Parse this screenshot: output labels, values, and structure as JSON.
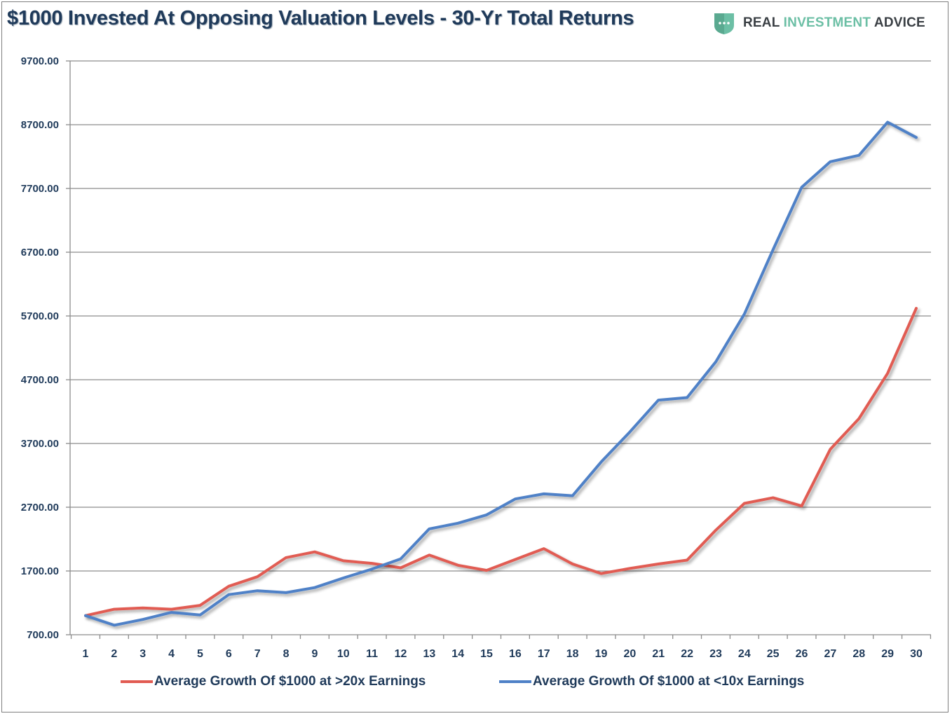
{
  "header": {
    "title": "$1000 Invested At Opposing Valuation Levels - 30-Yr Total Returns",
    "brand_part1": "REAL ",
    "brand_part2": "INVESTMENT",
    "brand_part3": " ADVICE",
    "logo_icon": "shield-chat-icon"
  },
  "colors": {
    "red_series": "#e15b52",
    "blue_series": "#4f81c7",
    "grid": "#8c8c8c",
    "text": "#1f3a5a",
    "brand_accent": "#6cbfa5"
  },
  "chart_data": {
    "type": "line",
    "title": "$1000 Invested At Opposing Valuation Levels - 30-Yr Total Returns",
    "xlabel": "",
    "ylabel": "",
    "x": [
      1,
      2,
      3,
      4,
      5,
      6,
      7,
      8,
      9,
      10,
      11,
      12,
      13,
      14,
      15,
      16,
      17,
      18,
      19,
      20,
      21,
      22,
      23,
      24,
      25,
      26,
      27,
      28,
      29,
      30
    ],
    "ylim": [
      700,
      9700
    ],
    "yticks": [
      "700.00",
      "1700.00",
      "2700.00",
      "3700.00",
      "4700.00",
      "5700.00",
      "6700.00",
      "7700.00",
      "8700.00",
      "9700.00"
    ],
    "grid": true,
    "legend_position": "bottom",
    "series": [
      {
        "name": "Average Growth Of $1000 at >20x Earnings",
        "color": "#e15b52",
        "values": [
          1000,
          1100,
          1120,
          1100,
          1160,
          1460,
          1610,
          1910,
          2000,
          1860,
          1820,
          1750,
          1950,
          1790,
          1710,
          1880,
          2050,
          1810,
          1660,
          1740,
          1810,
          1870,
          2340,
          2760,
          2850,
          2720,
          3610,
          4090,
          4800,
          5820
        ]
      },
      {
        "name": "Average Growth Of $1000 at <10x Earnings",
        "color": "#4f81c7",
        "values": [
          1000,
          850,
          940,
          1050,
          1010,
          1330,
          1390,
          1360,
          1440,
          1590,
          1730,
          1890,
          2360,
          2450,
          2580,
          2830,
          2910,
          2880,
          3410,
          3880,
          4380,
          4420,
          4980,
          5730,
          6740,
          7720,
          8120,
          8220,
          8740,
          8500
        ]
      }
    ]
  }
}
